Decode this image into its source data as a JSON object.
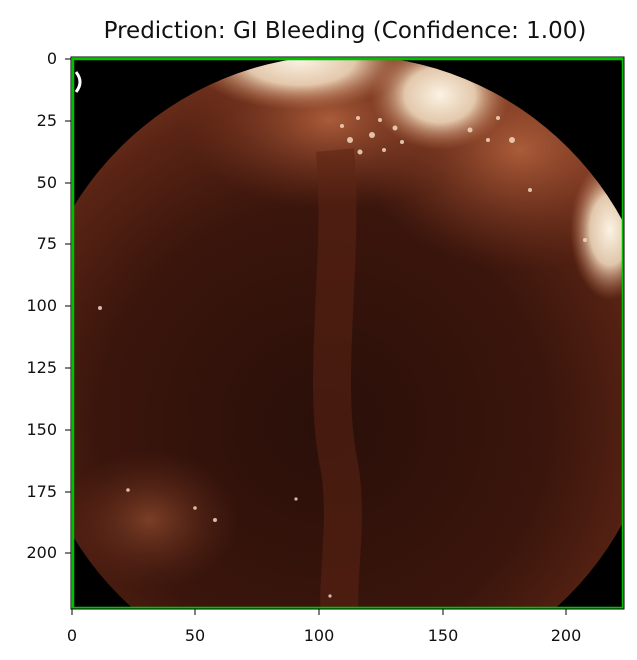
{
  "figure": {
    "title": "Prediction: GI Bleeding (Confidence: 1.00)",
    "box_color": "#00c000",
    "axis_color": "#000000"
  },
  "axes": {
    "x_ticks": [
      "0",
      "50",
      "100",
      "150",
      "200"
    ],
    "y_ticks": [
      "0",
      "25",
      "50",
      "75",
      "100",
      "125",
      "150",
      "175",
      "200"
    ],
    "x_range": [
      0,
      223
    ],
    "y_range": [
      0,
      223
    ]
  },
  "image": {
    "content": "endoscopic-view",
    "dominant_colors": [
      "#2b110a",
      "#6a2a17",
      "#b66a43",
      "#f1e3c9",
      "#000000"
    ]
  }
}
